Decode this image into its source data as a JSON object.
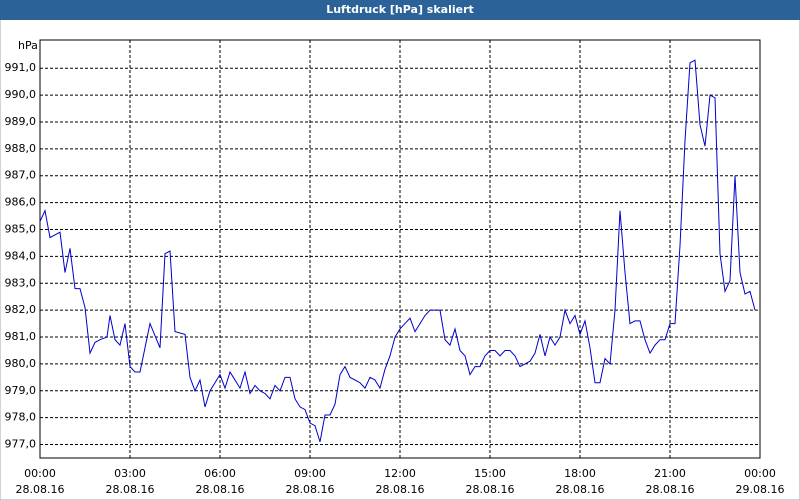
{
  "chart_data": {
    "type": "line",
    "title": "Luftdruck [hPa] skaliert",
    "y_label": "hPa",
    "xlim": [
      0,
      1440
    ],
    "xticks": [
      {
        "value": 0,
        "label": "00:00"
      },
      {
        "value": 180,
        "label": "03:00"
      },
      {
        "value": 360,
        "label": "06:00"
      },
      {
        "value": 540,
        "label": "09:00"
      },
      {
        "value": 720,
        "label": "12:00"
      },
      {
        "value": 900,
        "label": "15:00"
      },
      {
        "value": 1080,
        "label": "18:00"
      },
      {
        "value": 1260,
        "label": "21:00"
      },
      {
        "value": 1440,
        "label": "00:00"
      }
    ],
    "xtick_dates": [
      "28.08.16",
      "28.08.16",
      "28.08.16",
      "28.08.16",
      "28.08.16",
      "28.08.16",
      "28.08.16",
      "28.08.16",
      "29.08.16"
    ],
    "ylim": [
      976.5,
      992.05
    ],
    "yticks": [
      {
        "value": 977,
        "label": "977,0"
      },
      {
        "value": 978,
        "label": "978,0"
      },
      {
        "value": 979,
        "label": "979,0"
      },
      {
        "value": 980,
        "label": "980,0"
      },
      {
        "value": 981,
        "label": "981,0"
      },
      {
        "value": 982,
        "label": "982,0"
      },
      {
        "value": 983,
        "label": "983,0"
      },
      {
        "value": 984,
        "label": "984,0"
      },
      {
        "value": 985,
        "label": "985,0"
      },
      {
        "value": 986,
        "label": "986,0"
      },
      {
        "value": 987,
        "label": "987,0"
      },
      {
        "value": 988,
        "label": "988,0"
      },
      {
        "value": 989,
        "label": "989,0"
      },
      {
        "value": 990,
        "label": "990,0"
      },
      {
        "value": 991,
        "label": "991,0"
      }
    ],
    "grid": true,
    "series": [
      {
        "color": "#0000cc",
        "x": [
          0,
          10,
          20,
          40,
          50,
          60,
          70,
          80,
          90,
          100,
          110,
          120,
          134,
          140,
          150,
          160,
          170,
          180,
          190,
          200,
          220,
          240,
          250,
          260,
          270,
          290,
          300,
          310,
          320,
          330,
          340,
          350,
          360,
          370,
          380,
          390,
          400,
          410,
          420,
          430,
          440,
          450,
          460,
          470,
          480,
          490,
          500,
          510,
          520,
          530,
          540,
          550,
          560,
          570,
          580,
          590,
          600,
          610,
          620,
          640,
          650,
          660,
          670,
          680,
          690,
          700,
          710,
          720,
          730,
          740,
          750,
          760,
          770,
          780,
          800,
          810,
          820,
          830,
          840,
          850,
          860,
          870,
          880,
          890,
          900,
          910,
          920,
          930,
          940,
          950,
          960,
          970,
          980,
          990,
          1000,
          1010,
          1020,
          1030,
          1040,
          1050,
          1060,
          1070,
          1080,
          1090,
          1100,
          1110,
          1120,
          1130,
          1140,
          1150,
          1160,
          1170,
          1180,
          1190,
          1200,
          1210,
          1220,
          1230,
          1240,
          1250,
          1260,
          1270,
          1280,
          1290,
          1300,
          1310,
          1320,
          1330,
          1340,
          1350,
          1360,
          1370,
          1380,
          1390,
          1400,
          1410,
          1420,
          1430
        ],
        "values": [
          985.3,
          985.7,
          984.7,
          984.9,
          983.4,
          984.3,
          982.8,
          982.8,
          982.1,
          980.4,
          980.8,
          980.9,
          981.0,
          981.8,
          980.9,
          980.7,
          981.5,
          979.9,
          979.7,
          979.7,
          981.5,
          980.6,
          984.1,
          984.2,
          981.2,
          981.1,
          979.5,
          979.0,
          979.4,
          978.4,
          979.0,
          979.3,
          979.6,
          979.1,
          979.7,
          979.4,
          979.1,
          979.7,
          978.9,
          979.2,
          979.0,
          978.9,
          978.7,
          979.2,
          979.0,
          979.5,
          979.5,
          978.7,
          978.4,
          978.3,
          977.8,
          977.7,
          977.1,
          978.1,
          978.1,
          978.5,
          979.6,
          979.9,
          979.5,
          979.3,
          979.1,
          979.5,
          979.4,
          979.1,
          979.8,
          980.3,
          981.0,
          981.3,
          981.5,
          981.7,
          981.2,
          981.5,
          981.8,
          982.0,
          982.0,
          980.9,
          980.7,
          981.3,
          980.5,
          980.3,
          979.6,
          979.9,
          979.9,
          980.3,
          980.5,
          980.5,
          980.3,
          980.5,
          980.5,
          980.3,
          979.9,
          980.0,
          980.1,
          980.4,
          981.1,
          980.3,
          981.0,
          980.7,
          981.0,
          982.0,
          981.5,
          981.8,
          981.1,
          981.6,
          980.6,
          979.3,
          979.3,
          980.2,
          980.0,
          982.0,
          985.7,
          983.4,
          981.5,
          981.6,
          981.6,
          980.9,
          980.4,
          980.7,
          980.9,
          980.9,
          981.5,
          981.5,
          984.4,
          988.3,
          991.2,
          991.3,
          988.9,
          988.1,
          990.0,
          989.9,
          984.1,
          982.7,
          983.1,
          987.0,
          983.4,
          982.6,
          982.7,
          982.0
        ]
      }
    ]
  }
}
